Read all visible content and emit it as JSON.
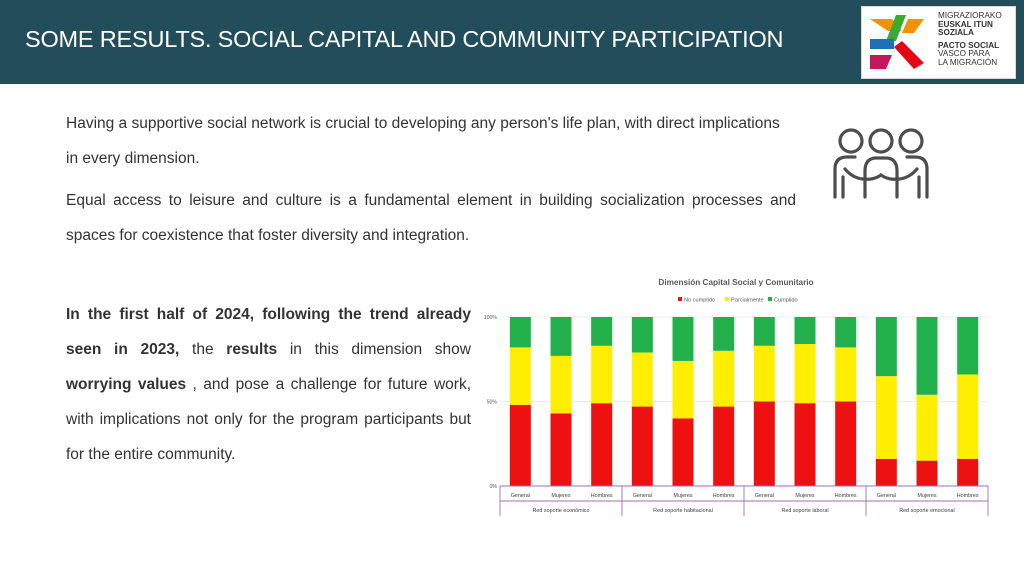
{
  "header": {
    "title": "SOME RESULTS. SOCIAL CAPITAL AND COMMUNITY PARTICIPATION"
  },
  "logo": {
    "lines": [
      "MIGRAZIORAKO",
      "EUSKAL ITUN",
      "SOZIALA",
      "PACTO SOCIAL",
      "VASCO PARA",
      "LA MIGRACIÓN"
    ],
    "colors": {
      "orange": "#f39200",
      "green": "#3aaa35",
      "blue": "#1d71b8",
      "red": "#e30613",
      "magenta": "#c2185b"
    }
  },
  "text": {
    "p1": "Having a supportive social network is crucial to developing any person's life plan, with direct implications in every dimension.",
    "p2": "Equal access to leisure and culture is a fundamental element in building socialization processes and spaces for coexistence that foster diversity and integration.",
    "p3": {
      "s1": "In the first half of 2024, following the trend already seen in 2023,",
      "s2": " the ",
      "s3": "results",
      "s4": " in this dimension show ",
      "s5": "worrying values",
      "s6": " , and pose a challenge for future work, with implications not only for the program participants but for the entire community."
    }
  },
  "icons": {
    "people": "people-group-icon"
  },
  "chart_data": {
    "type": "bar",
    "stacked": true,
    "percent": true,
    "title": "Dimensión Capital Social y Comunitario",
    "legend": [
      "No cumplido",
      "Parcialmente",
      "Cumplido"
    ],
    "legend_position": "top",
    "colors": {
      "No cumplido": "#ee1111",
      "Parcialmente": "#ffee00",
      "Cumplido": "#22b04b"
    },
    "y_ticks": [
      "0%",
      "50%",
      "100%"
    ],
    "ylim": [
      0,
      100
    ],
    "groups": [
      "Red soporte económico",
      "Red soporte habitacional",
      "Red soporte laboral",
      "Red soporte emocional"
    ],
    "categories": [
      "General",
      "Mujeres",
      "Hombres",
      "General",
      "Mujeres",
      "Hombres",
      "General",
      "Mujeres",
      "Hombres",
      "General",
      "Mujeres",
      "Hombres"
    ],
    "series": [
      {
        "name": "No cumplido",
        "values": [
          48,
          43,
          49,
          47,
          40,
          47,
          50,
          49,
          50,
          16,
          15,
          16
        ]
      },
      {
        "name": "Parcialmente",
        "values": [
          34,
          34,
          34,
          32,
          34,
          33,
          33,
          35,
          32,
          49,
          39,
          50
        ]
      },
      {
        "name": "Cumplido",
        "values": [
          18,
          23,
          17,
          21,
          26,
          20,
          17,
          16,
          18,
          35,
          46,
          34
        ]
      }
    ]
  }
}
